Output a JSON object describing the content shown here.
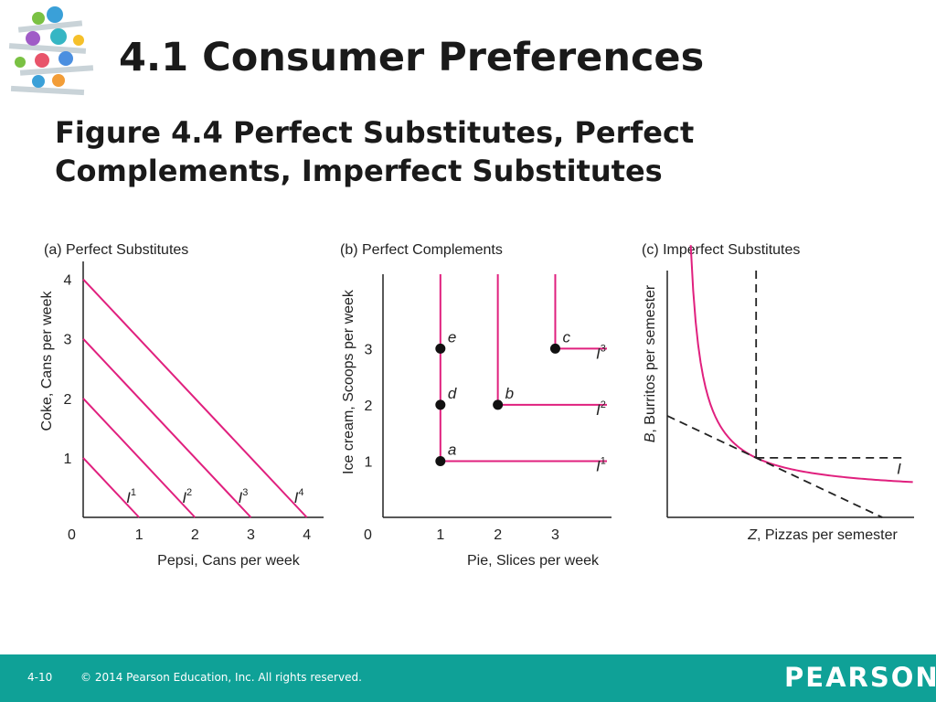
{
  "slide": {
    "title": "4.1 Consumer Preferences",
    "figure_title_line1": "Figure 4.4  Perfect Substitutes, Perfect",
    "figure_title_line2": "Complements, Imperfect Substitutes"
  },
  "footer": {
    "slide_number": "4-10",
    "copyright": "© 2014 Pearson Education, Inc. All rights reserved.",
    "brand": "PEARSON",
    "color": "#0fa197"
  },
  "colors": {
    "curve": "#e0207e",
    "axis": "#222222",
    "dashed": "#222222"
  },
  "chart_data": [
    {
      "type": "line",
      "title": "(a) Perfect Substitutes",
      "xlabel": "Pepsi, Cans per week",
      "ylabel": "Coke, Cans per week",
      "origin_label": "0",
      "xticks": [
        "1",
        "2",
        "3",
        "4"
      ],
      "yticks": [
        "1",
        "2",
        "3",
        "4"
      ],
      "xlim": [
        0,
        4.3
      ],
      "ylim": [
        0,
        4.3
      ],
      "series": [
        {
          "name": "I",
          "sup": "1",
          "points": [
            [
              0,
              1
            ],
            [
              1,
              0
            ]
          ]
        },
        {
          "name": "I",
          "sup": "2",
          "points": [
            [
              0,
              2
            ],
            [
              2,
              0
            ]
          ]
        },
        {
          "name": "I",
          "sup": "3",
          "points": [
            [
              0,
              3
            ],
            [
              3,
              0
            ]
          ]
        },
        {
          "name": "I",
          "sup": "4",
          "points": [
            [
              0,
              4
            ],
            [
              4,
              0
            ]
          ]
        }
      ]
    },
    {
      "type": "line",
      "title": "(b) Perfect Complements",
      "xlabel": "Pie, Slices per week",
      "ylabel": "Ice cream, Scoops per week",
      "origin_label": "0",
      "xticks": [
        "1",
        "2",
        "3"
      ],
      "yticks": [
        "1",
        "2",
        "3"
      ],
      "xlim": [
        0,
        3.9
      ],
      "ylim": [
        0,
        4.4
      ],
      "series": [
        {
          "name": "I",
          "sup": "1",
          "points": [
            [
              1,
              4.4
            ],
            [
              1,
              1
            ],
            [
              3.9,
              1
            ]
          ]
        },
        {
          "name": "I",
          "sup": "2",
          "points": [
            [
              2,
              4.4
            ],
            [
              2,
              2
            ],
            [
              3.9,
              2
            ]
          ]
        },
        {
          "name": "I",
          "sup": "3",
          "points": [
            [
              3,
              4.4
            ],
            [
              3,
              3
            ],
            [
              3.9,
              3
            ]
          ]
        }
      ],
      "points": [
        {
          "label": "a",
          "x": 1,
          "y": 1
        },
        {
          "label": "b",
          "x": 2,
          "y": 2
        },
        {
          "label": "c",
          "x": 3,
          "y": 3
        },
        {
          "label": "d",
          "x": 1,
          "y": 2
        },
        {
          "label": "e",
          "x": 1,
          "y": 3
        }
      ]
    },
    {
      "type": "line",
      "title": "(c) Imperfect Substitutes",
      "xlabel_italic": "Z",
      "xlabel": ", Pizzas per semester",
      "ylabel_italic": "B",
      "ylabel": ", Burritos per semester",
      "xlim": [
        0,
        10
      ],
      "ylim": [
        0,
        10
      ],
      "series": [
        {
          "name": "I",
          "curve": true
        }
      ],
      "tangent_point": [
        3.6,
        3.0
      ]
    }
  ]
}
